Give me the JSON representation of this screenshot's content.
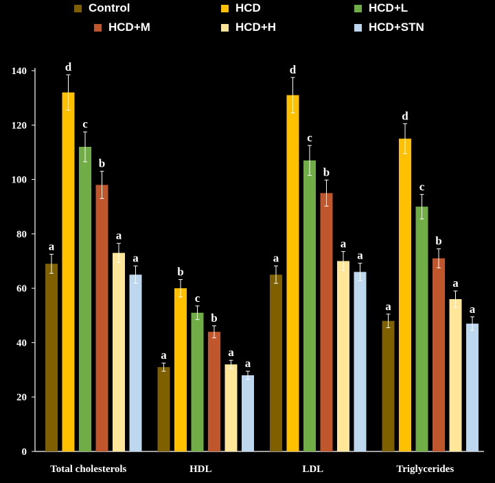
{
  "chart_data": {
    "type": "bar",
    "categories": [
      "Total cholesterols",
      "HDL",
      "LDL",
      "Triglycerides"
    ],
    "series": [
      {
        "name": "Control",
        "color": "#7F6000",
        "values": [
          69,
          31,
          65,
          48
        ],
        "errors": [
          3.5,
          1.5,
          3.2,
          2.5
        ],
        "letters": [
          "a",
          "a",
          "a",
          "a"
        ]
      },
      {
        "name": "HCD",
        "color": "#FFC000",
        "values": [
          132,
          60,
          131,
          115
        ],
        "errors": [
          6.5,
          3.2,
          6.5,
          5.5
        ],
        "letters": [
          "d",
          "b",
          "d",
          "d"
        ]
      },
      {
        "name": "HCD+L",
        "color": "#70AD47",
        "values": [
          112,
          51,
          107,
          90
        ],
        "errors": [
          5.5,
          2.5,
          5.5,
          4.5
        ],
        "letters": [
          "c",
          "c",
          "c",
          "c"
        ]
      },
      {
        "name": "HCD+M",
        "color": "#C0562C",
        "values": [
          98,
          44,
          95,
          71
        ],
        "errors": [
          5.0,
          2.2,
          4.8,
          3.5
        ],
        "letters": [
          "b",
          "b",
          "b",
          "b"
        ]
      },
      {
        "name": "HCD+H",
        "color": "#FFE699",
        "values": [
          73,
          32,
          70,
          56
        ],
        "errors": [
          3.5,
          1.5,
          3.5,
          3.0
        ],
        "letters": [
          "a",
          "a",
          "a",
          "a"
        ]
      },
      {
        "name": "HCD+STN",
        "color": "#BDD7EE",
        "values": [
          65,
          28,
          66,
          47
        ],
        "errors": [
          3.2,
          1.5,
          3.2,
          2.5
        ],
        "letters": [
          "a",
          "a",
          "a",
          "a"
        ]
      }
    ],
    "ylim": [
      0,
      140
    ],
    "yticks": [
      0,
      20,
      40,
      60,
      80,
      100,
      120,
      140
    ],
    "title": "",
    "xlabel": "",
    "ylabel": "",
    "legend_position": "top",
    "grid": false
  }
}
